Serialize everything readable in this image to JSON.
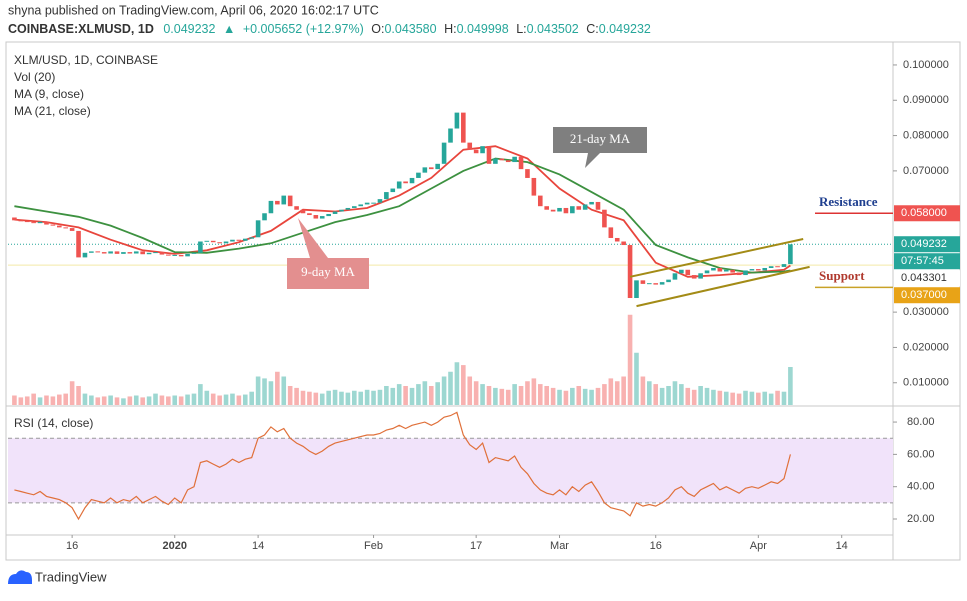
{
  "header": {
    "publisher": "shyna published on TradingView.com, April 06, 2020 16:02:17 UTC",
    "symbol": "COINBASE:XLMUSD, 1D",
    "last": "0.049232",
    "arrow": "▲",
    "change": "+0.005652 (+12.97%)",
    "ohlc": [
      {
        "label": "O:",
        "value": "0.043580"
      },
      {
        "label": "H:",
        "value": "0.049998"
      },
      {
        "label": "L:",
        "value": "0.043502"
      },
      {
        "label": "C:",
        "value": "0.049232"
      }
    ]
  },
  "footer": {
    "brand": "TradingView"
  },
  "chart_data": {
    "type": "candlestick",
    "legend": [
      "XLM/USD, 1D, COINBASE",
      "Vol (20)"
    ],
    "up_color": "#26a69a",
    "down_color": "#ef5350",
    "xlim": [
      "2019-12-06",
      "2020-04-22"
    ],
    "xticks": [
      {
        "value": "2019-12-16",
        "label": "16"
      },
      {
        "value": "2020-01-01",
        "label": "2020"
      },
      {
        "value": "2020-01-14",
        "label": "14"
      },
      {
        "value": "2020-02-01",
        "label": "Feb"
      },
      {
        "value": "2020-02-17",
        "label": "17"
      },
      {
        "value": "2020-03-01",
        "label": "Mar"
      },
      {
        "value": "2020-03-16",
        "label": "16"
      },
      {
        "value": "2020-04-01",
        "label": "Apr"
      },
      {
        "value": "2020-04-14",
        "label": "14"
      }
    ],
    "ylim": [
      0.0037,
      0.1065
    ],
    "yticks": [
      {
        "value": 0.01,
        "label": "0.010000"
      },
      {
        "value": 0.02,
        "label": "0.020000"
      },
      {
        "value": 0.03,
        "label": "0.030000"
      },
      {
        "value": 0.07,
        "label": "0.070000"
      },
      {
        "value": 0.08,
        "label": "0.080000"
      },
      {
        "value": 0.09,
        "label": "0.090000"
      },
      {
        "value": 0.1,
        "label": "0.100000"
      }
    ],
    "x": [
      "2019-12-07",
      "2019-12-08",
      "2019-12-09",
      "2019-12-10",
      "2019-12-11",
      "2019-12-12",
      "2019-12-13",
      "2019-12-14",
      "2019-12-15",
      "2019-12-16",
      "2019-12-17",
      "2019-12-18",
      "2019-12-19",
      "2019-12-20",
      "2019-12-21",
      "2019-12-22",
      "2019-12-23",
      "2019-12-24",
      "2019-12-25",
      "2019-12-26",
      "2019-12-27",
      "2019-12-28",
      "2019-12-29",
      "2019-12-30",
      "2019-12-31",
      "2020-01-01",
      "2020-01-02",
      "2020-01-03",
      "2020-01-04",
      "2020-01-05",
      "2020-01-06",
      "2020-01-07",
      "2020-01-08",
      "2020-01-09",
      "2020-01-10",
      "2020-01-11",
      "2020-01-12",
      "2020-01-13",
      "2020-01-14",
      "2020-01-15",
      "2020-01-16",
      "2020-01-17",
      "2020-01-18",
      "2020-01-19",
      "2020-01-20",
      "2020-01-21",
      "2020-01-22",
      "2020-01-23",
      "2020-01-24",
      "2020-01-25",
      "2020-01-26",
      "2020-01-27",
      "2020-01-28",
      "2020-01-29",
      "2020-01-30",
      "2020-01-31",
      "2020-02-01",
      "2020-02-02",
      "2020-02-03",
      "2020-02-04",
      "2020-02-05",
      "2020-02-06",
      "2020-02-07",
      "2020-02-08",
      "2020-02-09",
      "2020-02-10",
      "2020-02-11",
      "2020-02-12",
      "2020-02-13",
      "2020-02-14",
      "2020-02-15",
      "2020-02-16",
      "2020-02-17",
      "2020-02-18",
      "2020-02-19",
      "2020-02-20",
      "2020-02-21",
      "2020-02-22",
      "2020-02-23",
      "2020-02-24",
      "2020-02-25",
      "2020-02-26",
      "2020-02-27",
      "2020-02-28",
      "2020-02-29",
      "2020-03-01",
      "2020-03-02",
      "2020-03-03",
      "2020-03-04",
      "2020-03-05",
      "2020-03-06",
      "2020-03-07",
      "2020-03-08",
      "2020-03-09",
      "2020-03-10",
      "2020-03-11",
      "2020-03-12",
      "2020-03-13",
      "2020-03-14",
      "2020-03-15",
      "2020-03-16",
      "2020-03-17",
      "2020-03-18",
      "2020-03-19",
      "2020-03-20",
      "2020-03-21",
      "2020-03-22",
      "2020-03-23",
      "2020-03-24",
      "2020-03-25",
      "2020-03-26",
      "2020-03-27",
      "2020-03-28",
      "2020-03-29",
      "2020-03-30",
      "2020-03-31",
      "2020-04-01",
      "2020-04-02",
      "2020-04-03",
      "2020-04-04",
      "2020-04-05",
      "2020-04-06"
    ],
    "open": [
      0.0568,
      0.056,
      0.0558,
      0.0555,
      0.0552,
      0.0556,
      0.0548,
      0.0545,
      0.054,
      0.0538,
      0.053,
      0.0455,
      0.0468,
      0.0472,
      0.047,
      0.0466,
      0.0472,
      0.0465,
      0.047,
      0.0466,
      0.0472,
      0.0464,
      0.0468,
      0.047,
      0.0463,
      0.046,
      0.0462,
      0.0458,
      0.0465,
      0.0468,
      0.05,
      0.0502,
      0.0498,
      0.0495,
      0.05,
      0.0505,
      0.0502,
      0.0508,
      0.0512,
      0.056,
      0.058,
      0.0615,
      0.0605,
      0.063,
      0.06,
      0.059,
      0.058,
      0.0575,
      0.0565,
      0.0572,
      0.0578,
      0.0585,
      0.059,
      0.0595,
      0.06,
      0.0605,
      0.061,
      0.061,
      0.062,
      0.064,
      0.065,
      0.067,
      0.0665,
      0.068,
      0.0695,
      0.071,
      0.0705,
      0.072,
      0.078,
      0.082,
      0.0865,
      0.078,
      0.076,
      0.075,
      0.077,
      0.072,
      0.0735,
      0.073,
      0.0725,
      0.074,
      0.0705,
      0.068,
      0.063,
      0.06,
      0.059,
      0.0585,
      0.0595,
      0.058,
      0.06,
      0.059,
      0.0605,
      0.0612,
      0.059,
      0.054,
      0.051,
      0.05,
      0.049,
      0.034,
      0.039,
      0.038,
      0.0382,
      0.0378,
      0.0385,
      0.0392,
      0.041,
      0.042,
      0.0405,
      0.0395,
      0.041,
      0.0418,
      0.0425,
      0.0415,
      0.042,
      0.0412,
      0.0405,
      0.0418,
      0.0422,
      0.0418,
      0.0425,
      0.043,
      0.0428,
      0.0436
    ],
    "close": [
      0.056,
      0.0558,
      0.0555,
      0.0552,
      0.0556,
      0.0548,
      0.0545,
      0.054,
      0.0538,
      0.053,
      0.0455,
      0.0468,
      0.0472,
      0.047,
      0.0466,
      0.0472,
      0.0465,
      0.047,
      0.0466,
      0.0472,
      0.0464,
      0.0468,
      0.047,
      0.0463,
      0.046,
      0.0462,
      0.0458,
      0.0465,
      0.0468,
      0.05,
      0.0502,
      0.0498,
      0.0495,
      0.05,
      0.0505,
      0.0502,
      0.0508,
      0.0512,
      0.056,
      0.058,
      0.0615,
      0.0605,
      0.063,
      0.06,
      0.059,
      0.058,
      0.0575,
      0.0565,
      0.0572,
      0.0578,
      0.0585,
      0.059,
      0.0595,
      0.06,
      0.0605,
      0.061,
      0.061,
      0.062,
      0.064,
      0.065,
      0.067,
      0.0665,
      0.068,
      0.0695,
      0.071,
      0.0705,
      0.072,
      0.078,
      0.082,
      0.0865,
      0.078,
      0.076,
      0.075,
      0.077,
      0.072,
      0.0735,
      0.073,
      0.0725,
      0.074,
      0.0705,
      0.068,
      0.063,
      0.06,
      0.059,
      0.0585,
      0.0595,
      0.058,
      0.06,
      0.059,
      0.0605,
      0.0612,
      0.059,
      0.054,
      0.051,
      0.05,
      0.049,
      0.034,
      0.039,
      0.038,
      0.0382,
      0.0378,
      0.0385,
      0.0392,
      0.041,
      0.042,
      0.0405,
      0.0395,
      0.041,
      0.0418,
      0.0425,
      0.0415,
      0.042,
      0.0412,
      0.0405,
      0.0418,
      0.0422,
      0.0418,
      0.0425,
      0.043,
      0.0428,
      0.0436,
      0.0492
    ],
    "volume_lim": [
      0,
      100
    ],
    "volume": [
      10,
      8,
      9,
      12,
      8,
      10,
      9,
      11,
      12,
      25,
      20,
      12,
      10,
      8,
      9,
      10,
      8,
      7,
      9,
      10,
      8,
      9,
      12,
      10,
      9,
      10,
      9,
      11,
      12,
      22,
      15,
      12,
      10,
      11,
      12,
      10,
      11,
      14,
      30,
      28,
      25,
      35,
      30,
      20,
      18,
      15,
      14,
      13,
      12,
      15,
      16,
      14,
      13,
      15,
      14,
      16,
      15,
      16,
      20,
      18,
      22,
      20,
      18,
      22,
      25,
      20,
      24,
      30,
      35,
      45,
      42,
      30,
      25,
      22,
      20,
      18,
      17,
      16,
      22,
      20,
      25,
      28,
      22,
      20,
      18,
      16,
      15,
      18,
      20,
      17,
      16,
      18,
      22,
      28,
      25,
      30,
      95,
      55,
      30,
      25,
      22,
      18,
      20,
      25,
      22,
      18,
      16,
      20,
      18,
      16,
      15,
      14,
      13,
      12,
      15,
      14,
      13,
      14,
      12,
      15,
      14,
      40
    ],
    "series": [
      {
        "name": "MA (9, close)",
        "color": "#e8453c",
        "x": [
          "2019-12-07",
          "2019-12-12",
          "2019-12-17",
          "2019-12-22",
          "2019-12-27",
          "2020-01-01",
          "2020-01-06",
          "2020-01-11",
          "2020-01-16",
          "2020-01-21",
          "2020-01-26",
          "2020-01-31",
          "2020-02-05",
          "2020-02-10",
          "2020-02-15",
          "2020-02-20",
          "2020-02-25",
          "2020-03-01",
          "2020-03-06",
          "2020-03-11",
          "2020-03-16",
          "2020-03-21",
          "2020-03-26",
          "2020-03-31",
          "2020-04-05",
          "2020-04-06"
        ],
        "values": [
          0.0562,
          0.0555,
          0.054,
          0.0505,
          0.0475,
          0.0465,
          0.0475,
          0.0498,
          0.053,
          0.059,
          0.0585,
          0.0595,
          0.063,
          0.068,
          0.076,
          0.077,
          0.0735,
          0.065,
          0.059,
          0.056,
          0.044,
          0.04,
          0.0405,
          0.0412,
          0.042,
          0.0432
        ]
      },
      {
        "name": "MA (21, close)",
        "color": "#3d9140",
        "x": [
          "2019-12-07",
          "2019-12-12",
          "2019-12-17",
          "2019-12-22",
          "2019-12-27",
          "2020-01-01",
          "2020-01-06",
          "2020-01-11",
          "2020-01-16",
          "2020-01-21",
          "2020-01-26",
          "2020-01-31",
          "2020-02-05",
          "2020-02-10",
          "2020-02-15",
          "2020-02-20",
          "2020-02-25",
          "2020-03-01",
          "2020-03-06",
          "2020-03-11",
          "2020-03-16",
          "2020-03-21",
          "2020-03-26",
          "2020-03-31",
          "2020-04-05",
          "2020-04-06"
        ],
        "values": [
          0.06,
          0.0585,
          0.057,
          0.0545,
          0.051,
          0.047,
          0.0468,
          0.048,
          0.0495,
          0.0525,
          0.0555,
          0.0575,
          0.06,
          0.065,
          0.07,
          0.0735,
          0.0725,
          0.069,
          0.064,
          0.059,
          0.049,
          0.0455,
          0.0425,
          0.0412,
          0.0415,
          0.0418
        ]
      }
    ],
    "channel": {
      "color": "#a38b16",
      "lines": [
        {
          "x": [
            "2020-03-13",
            "2020-04-09"
          ],
          "values": [
            0.0317,
            0.0428
          ]
        },
        {
          "x": [
            "2020-03-12",
            "2020-04-08"
          ],
          "values": [
            0.04,
            0.0507
          ]
        }
      ]
    },
    "price_labels": [
      {
        "value": 0.058,
        "label": "0.058000",
        "color": "#ef5350",
        "text_color": "#ffffff"
      },
      {
        "value": 0.049232,
        "label": "0.049232",
        "color": "#26a69a",
        "text_color": "#ffffff"
      },
      {
        "value": 0.043301,
        "label": "0.043301",
        "color": "#ffffff",
        "text_color": "#333333"
      },
      {
        "value": 0.037,
        "label": "0.037000",
        "color": "#e8a317",
        "text_color": "#ffffff"
      }
    ],
    "countdown": "07:57:45",
    "resistance": {
      "label": "Resistance",
      "value": 0.058
    },
    "support": {
      "label": "Support",
      "value": 0.037
    },
    "annotations": [
      {
        "text": "21-day MA"
      },
      {
        "text": "9-day MA"
      }
    ],
    "rsi": {
      "name": "RSI (14, close)",
      "color": "#e0703a",
      "ylim": [
        10.1,
        88.7
      ],
      "yticks": [
        {
          "value": 20,
          "label": "20.00"
        },
        {
          "value": 40,
          "label": "40.00"
        },
        {
          "value": 60,
          "label": "60.00"
        },
        {
          "value": 80,
          "label": "80.00"
        }
      ],
      "band": [
        30,
        70
      ],
      "values": [
        38,
        37,
        36,
        35,
        37,
        34,
        33,
        32,
        30,
        27,
        20,
        27,
        32,
        31,
        30,
        33,
        30,
        32,
        31,
        34,
        30,
        32,
        34,
        31,
        29,
        33,
        30,
        38,
        40,
        55,
        56,
        54,
        52,
        54,
        57,
        55,
        57,
        58,
        70,
        72,
        77,
        74,
        76,
        70,
        67,
        65,
        62,
        60,
        62,
        65,
        67,
        68,
        69,
        70,
        71,
        72,
        72,
        73,
        75,
        76,
        78,
        76,
        78,
        79,
        80,
        78,
        80,
        83,
        84,
        86,
        72,
        66,
        63,
        67,
        55,
        58,
        57,
        56,
        59,
        52,
        48,
        42,
        38,
        36,
        35,
        38,
        35,
        40,
        37,
        41,
        43,
        37,
        30,
        27,
        26,
        25,
        22,
        30,
        28,
        29,
        28,
        30,
        33,
        38,
        40,
        36,
        34,
        38,
        40,
        42,
        38,
        40,
        38,
        36,
        39,
        40,
        39,
        41,
        43,
        42,
        45,
        60
      ]
    }
  }
}
